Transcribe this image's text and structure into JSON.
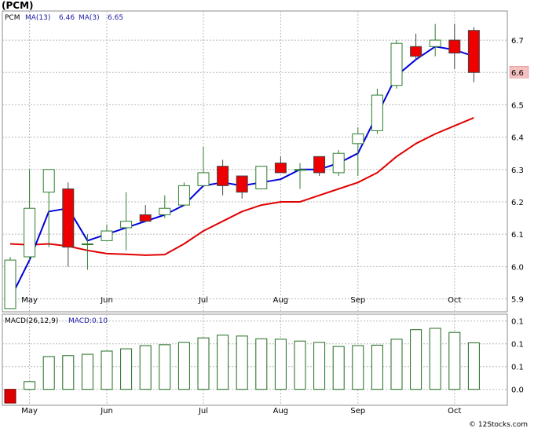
{
  "title": "(PCM)",
  "footer": "© 12Stocks.com",
  "colors": {
    "up_candle_fill": "#ffffff",
    "up_candle_stroke": "#2e7d2e",
    "down_candle_fill": "#ee0000",
    "ma_fast": "#0000dd",
    "ma_slow": "#e00000",
    "macd_bar_pos": "#1f6b1f",
    "macd_bar_neg": "#dd0000",
    "last_price_badge": "#f4c0c0",
    "grid": "#b8b8b8"
  },
  "chart_data": [
    {
      "type": "candlestick",
      "legend": {
        "ticker": "PCM",
        "ma_fast_label": "MA(13)",
        "ma_fast_value": "6.46",
        "ma_slow_label": "MA(3)",
        "ma_slow_value": "6.65"
      },
      "y_ticks": [
        5.9,
        6.0,
        6.1,
        6.2,
        6.3,
        6.4,
        6.5,
        6.6,
        6.7
      ],
      "y_tick_labels": [
        "5.9",
        "6.0",
        "6.1",
        "6.2",
        "6.3",
        "6.4",
        "6.5",
        "6.6",
        "6.7"
      ],
      "last_price_label": "6.6",
      "last_price": 6.6,
      "ylim": [
        5.86,
        6.79
      ],
      "x_month_labels": [
        {
          "label": "May",
          "week": 1
        },
        {
          "label": "Jun",
          "week": 5
        },
        {
          "label": "Jul",
          "week": 10
        },
        {
          "label": "Aug",
          "week": 14
        },
        {
          "label": "Sep",
          "week": 18
        },
        {
          "label": "Oct",
          "week": 23
        }
      ],
      "candles": [
        {
          "o": 5.87,
          "h": 6.03,
          "l": 5.87,
          "c": 6.02
        },
        {
          "o": 6.03,
          "h": 6.3,
          "l": 6.02,
          "c": 6.18
        },
        {
          "o": 6.23,
          "h": 6.3,
          "l": 6.06,
          "c": 6.3
        },
        {
          "o": 6.24,
          "h": 6.26,
          "l": 6.0,
          "c": 6.06
        },
        {
          "o": 6.07,
          "h": 6.1,
          "l": 5.99,
          "c": 6.07
        },
        {
          "o": 6.08,
          "h": 6.13,
          "l": 6.08,
          "c": 6.11
        },
        {
          "o": 6.12,
          "h": 6.23,
          "l": 6.05,
          "c": 6.14
        },
        {
          "o": 6.16,
          "h": 6.19,
          "l": 6.14,
          "c": 6.14
        },
        {
          "o": 6.16,
          "h": 6.22,
          "l": 6.15,
          "c": 6.18
        },
        {
          "o": 6.19,
          "h": 6.26,
          "l": 6.19,
          "c": 6.25
        },
        {
          "o": 6.25,
          "h": 6.37,
          "l": 6.25,
          "c": 6.29
        },
        {
          "o": 6.31,
          "h": 6.33,
          "l": 6.22,
          "c": 6.25
        },
        {
          "o": 6.28,
          "h": 6.28,
          "l": 6.21,
          "c": 6.23
        },
        {
          "o": 6.24,
          "h": 6.31,
          "l": 6.24,
          "c": 6.31
        },
        {
          "o": 6.32,
          "h": 6.34,
          "l": 6.29,
          "c": 6.29
        },
        {
          "o": 6.3,
          "h": 6.32,
          "l": 6.24,
          "c": 6.3
        },
        {
          "o": 6.34,
          "h": 6.34,
          "l": 6.28,
          "c": 6.29
        },
        {
          "o": 6.29,
          "h": 6.36,
          "l": 6.28,
          "c": 6.35
        },
        {
          "o": 6.38,
          "h": 6.43,
          "l": 6.28,
          "c": 6.41
        },
        {
          "o": 6.42,
          "h": 6.55,
          "l": 6.41,
          "c": 6.53
        },
        {
          "o": 6.56,
          "h": 6.7,
          "l": 6.55,
          "c": 6.69
        },
        {
          "o": 6.68,
          "h": 6.72,
          "l": 6.64,
          "c": 6.65
        },
        {
          "o": 6.68,
          "h": 6.75,
          "l": 6.65,
          "c": 6.7
        },
        {
          "o": 6.7,
          "h": 6.75,
          "l": 6.61,
          "c": 6.66
        },
        {
          "o": 6.73,
          "h": 6.74,
          "l": 6.57,
          "c": 6.6
        }
      ],
      "ma_fast_values": [
        5.9,
        6.02,
        6.17,
        6.18,
        6.08,
        6.1,
        6.12,
        6.14,
        6.16,
        6.19,
        6.25,
        6.26,
        6.25,
        6.26,
        6.27,
        6.3,
        6.3,
        6.32,
        6.35,
        6.47,
        6.59,
        6.64,
        6.68,
        6.67,
        6.65
      ],
      "ma_slow_values": [
        6.07,
        6.067,
        6.07,
        6.063,
        6.05,
        6.04,
        6.038,
        6.035,
        6.037,
        6.07,
        6.11,
        6.14,
        6.17,
        6.19,
        6.2,
        6.2,
        6.22,
        6.24,
        6.26,
        6.29,
        6.34,
        6.38,
        6.41,
        6.435,
        6.46
      ]
    },
    {
      "type": "bar",
      "label": "MACD(26,12,9)",
      "value_label": "MACD:0.10",
      "y_tick_labels": [
        "0.1",
        "0.1",
        "0.1",
        "0.0"
      ],
      "y_ticks": [
        0.15,
        0.1,
        0.05,
        0.0
      ],
      "ylim": [
        -0.035,
        0.165
      ],
      "values": [
        -0.03,
        0.017,
        0.072,
        0.074,
        0.077,
        0.084,
        0.089,
        0.096,
        0.098,
        0.103,
        0.113,
        0.119,
        0.117,
        0.111,
        0.11,
        0.106,
        0.103,
        0.094,
        0.096,
        0.097,
        0.11,
        0.131,
        0.134,
        0.125,
        0.102
      ]
    }
  ]
}
